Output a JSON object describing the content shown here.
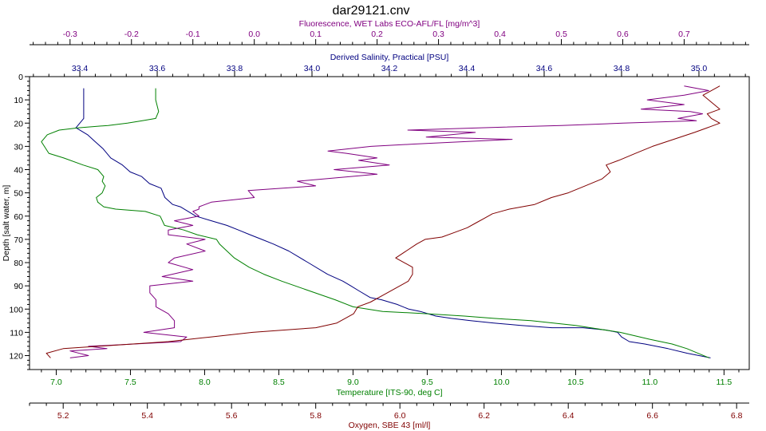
{
  "chart_data": {
    "type": "line",
    "title": "dar29121.cnv",
    "grid": false,
    "legend": "none",
    "y_axis": {
      "label": "Depth [salt water, m]",
      "ticks": [
        0,
        10,
        20,
        30,
        40,
        50,
        60,
        70,
        80,
        90,
        100,
        110,
        120
      ],
      "range": [
        0,
        126
      ],
      "inverted": true
    },
    "x_axes": [
      {
        "id": "fluorescence",
        "label": "Fluorescence, WET Labs ECO-AFL/FL [mg/m^3]",
        "ticks": [
          "-0.3",
          "-0.2",
          "-0.1",
          "0.0",
          "0.1",
          "0.2",
          "0.3",
          "0.4",
          "0.5",
          "0.6",
          "0.7"
        ],
        "range": [
          -0.366,
          0.806
        ],
        "color": "#800080"
      },
      {
        "id": "salinity",
        "label": "Derived Salinity, Practical [PSU]",
        "ticks": [
          "33.4",
          "33.6",
          "33.8",
          "34.0",
          "34.2",
          "34.4",
          "34.6",
          "34.8",
          "35.0"
        ],
        "range": [
          33.27,
          35.13
        ],
        "color": "#000080"
      },
      {
        "id": "temperature",
        "label": "Temperature [ITS-90, deg C]",
        "ticks": [
          "7.0",
          "7.5",
          "8.0",
          "8.5",
          "9.0",
          "9.5",
          "10.0",
          "10.5",
          "11.0",
          "11.5"
        ],
        "range": [
          6.82,
          11.67
        ],
        "color": "#008000"
      },
      {
        "id": "oxygen",
        "label": "Oxygen, SBE 43 [ml/l]",
        "ticks": [
          "5.2",
          "5.4",
          "5.6",
          "5.8",
          "6.0",
          "6.2",
          "6.4",
          "6.6",
          "6.8"
        ],
        "range": [
          5.12,
          6.83
        ],
        "color": "#800000"
      }
    ],
    "series": [
      {
        "axis": "salinity",
        "color": "#000080",
        "x": [
          33.41,
          33.41,
          33.41,
          33.41,
          33.4,
          33.39,
          33.42,
          33.44,
          33.46,
          33.48,
          33.51,
          33.53,
          33.56,
          33.58,
          33.61,
          33.62,
          33.64,
          33.66,
          33.68,
          33.7,
          33.74,
          33.78,
          33.81,
          33.84,
          33.87,
          33.9,
          33.94,
          33.99,
          34.04,
          34.08,
          34.1,
          34.12,
          34.15,
          34.18,
          34.22,
          34.25,
          34.28,
          34.32,
          34.36,
          34.41,
          34.47,
          34.54,
          34.62,
          34.7,
          34.76,
          34.79,
          34.8,
          34.82,
          34.86,
          34.92,
          34.97,
          35.03
        ],
        "y": [
          5,
          10,
          15,
          18,
          20,
          22,
          25,
          28,
          31,
          35,
          38,
          41,
          43,
          46,
          48,
          52,
          55,
          56,
          58,
          60,
          62,
          64,
          66,
          68,
          70,
          72,
          75,
          80,
          85,
          88,
          90,
          92,
          95,
          96,
          98,
          100,
          101,
          103,
          104,
          105,
          106,
          107,
          108,
          108,
          109,
          110,
          112,
          114,
          115,
          117,
          119,
          121
        ]
      },
      {
        "axis": "temperature",
        "color": "#008000",
        "x": [
          7.67,
          7.67,
          7.69,
          7.67,
          7.58,
          7.48,
          7.35,
          7.15,
          7.02,
          6.94,
          6.9,
          6.92,
          6.95,
          7.05,
          7.18,
          7.28,
          7.32,
          7.31,
          7.33,
          7.31,
          7.27,
          7.28,
          7.32,
          7.4,
          7.6,
          7.7,
          7.73,
          7.86,
          7.95,
          8.08,
          8.1,
          8.15,
          8.2,
          8.3,
          8.4,
          8.52,
          8.7,
          8.88,
          9.0,
          9.2,
          9.5,
          9.75,
          9.95,
          10.2,
          10.5,
          10.8,
          11.0,
          11.15,
          11.25,
          11.4
        ],
        "y": [
          5,
          10,
          15,
          18,
          19,
          20,
          21,
          22,
          23,
          25,
          28,
          30,
          33,
          35,
          38,
          40,
          43,
          45,
          47,
          50,
          52,
          54,
          56,
          57,
          58,
          60,
          64,
          66,
          68,
          70,
          72,
          75,
          78,
          82,
          85,
          88,
          92,
          96,
          99,
          101,
          102,
          103,
          104,
          105,
          107,
          110,
          113,
          115,
          117,
          121
        ]
      },
      {
        "axis": "fluorescence",
        "color": "#800080",
        "x": [
          0.7,
          0.74,
          0.7,
          0.64,
          0.7,
          0.63,
          0.71,
          0.73,
          0.69,
          0.72,
          0.6,
          0.5,
          0.37,
          0.25,
          0.36,
          0.28,
          0.42,
          0.26,
          0.19,
          0.12,
          0.15,
          0.2,
          0.17,
          0.22,
          0.13,
          0.2,
          0.07,
          0.1,
          -0.01,
          0.0,
          -0.07,
          -0.09,
          -0.09,
          -0.1,
          -0.09,
          -0.13,
          -0.1,
          -0.14,
          -0.14,
          -0.08,
          -0.11,
          -0.08,
          -0.13,
          -0.14,
          -0.1,
          -0.15,
          -0.1,
          -0.17,
          -0.17,
          -0.16,
          -0.16,
          -0.14,
          -0.13,
          -0.13,
          -0.18,
          -0.11,
          -0.12,
          -0.27,
          -0.24,
          -0.3,
          -0.27,
          -0.3
        ],
        "y": [
          4,
          6,
          8,
          10,
          12,
          14,
          15,
          16,
          18,
          19,
          20,
          21,
          22,
          23,
          24,
          26,
          27,
          29,
          30,
          32,
          33,
          35,
          36,
          38,
          40,
          42,
          45,
          47,
          49,
          52,
          54,
          56,
          57,
          58,
          60,
          62,
          64,
          66,
          68,
          70,
          72,
          75,
          78,
          80,
          83,
          86,
          88,
          90,
          93,
          96,
          99,
          102,
          105,
          108,
          110,
          112,
          114,
          116,
          117,
          118,
          120,
          121
        ]
      },
      {
        "axis": "oxygen",
        "color": "#800000",
        "x": [
          6.76,
          6.72,
          6.74,
          6.76,
          6.73,
          6.74,
          6.76,
          6.73,
          6.7,
          6.65,
          6.6,
          6.56,
          6.52,
          6.49,
          6.5,
          6.48,
          6.44,
          6.4,
          6.36,
          6.32,
          6.26,
          6.22,
          6.2,
          6.18,
          6.16,
          6.13,
          6.1,
          6.06,
          6.04,
          5.99,
          6.03,
          6.03,
          6.02,
          5.99,
          5.96,
          5.93,
          5.9,
          5.89,
          5.87,
          5.85,
          5.8,
          5.65,
          5.55,
          5.45,
          5.2,
          5.16,
          5.17
        ],
        "y": [
          4,
          8,
          11,
          14,
          16,
          18,
          20,
          22,
          24,
          27,
          30,
          33,
          36,
          38,
          41,
          44,
          47,
          50,
          52,
          55,
          57,
          59,
          61,
          63,
          65,
          67,
          69,
          70,
          72,
          78,
          82,
          85,
          88,
          91,
          94,
          97,
          99,
          102,
          104,
          106,
          108,
          110,
          112,
          114,
          117,
          119,
          121
        ]
      }
    ]
  }
}
